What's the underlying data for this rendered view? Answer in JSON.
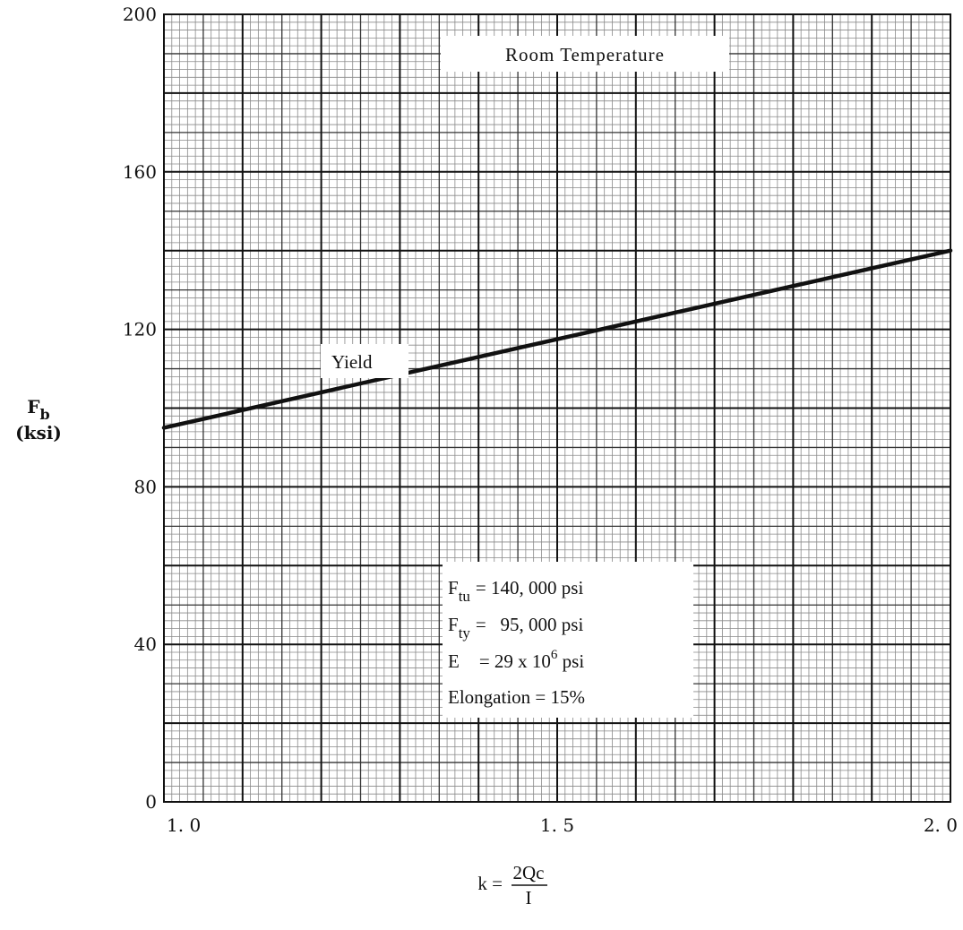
{
  "chart_data": {
    "type": "line",
    "title": "",
    "xlim": [
      1.0,
      2.0
    ],
    "ylim": [
      0,
      200
    ],
    "x_ticks": [
      {
        "value": 1.0,
        "label": "1. 0"
      },
      {
        "value": 1.5,
        "label": "1. 5"
      },
      {
        "value": 2.0,
        "label": "2. 0"
      }
    ],
    "y_ticks": [
      {
        "value": 0,
        "label": "0"
      },
      {
        "value": 40,
        "label": "40"
      },
      {
        "value": 80,
        "label": "80"
      },
      {
        "value": 120,
        "label": "120"
      },
      {
        "value": 160,
        "label": "160"
      },
      {
        "value": 200,
        "label": "200"
      }
    ],
    "ylabel": {
      "main": "F",
      "sub": "b",
      "unit": "(ksi)"
    },
    "xlabel": {
      "lhs": "k =",
      "numerator": "2Qc",
      "denominator": "I"
    },
    "grid": true,
    "series": [
      {
        "name": "Yield",
        "x": [
          1.0,
          2.0
        ],
        "y": [
          95,
          140
        ]
      }
    ],
    "annotations": {
      "condition": "Room Temperature",
      "series_label": "Yield",
      "properties": [
        {
          "sym": "F",
          "sub": "tu",
          "text": "= 140, 000 psi"
        },
        {
          "sym": "F",
          "sub": "ty",
          "text": "=   95, 000 psi"
        },
        {
          "sym": "E",
          "sub": "",
          "text": "= 29 x 10",
          "sup": "6",
          "after": " psi"
        },
        {
          "sym": "",
          "sub": "",
          "text": "Elongation = 15%"
        }
      ]
    }
  }
}
